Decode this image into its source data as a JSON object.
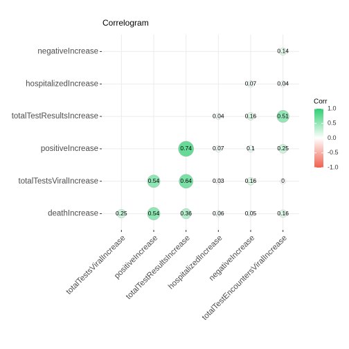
{
  "chart_data": {
    "type": "correlogram",
    "title": "Correlogram",
    "x_categories": [
      "totalTestsViralIncrease",
      "positiveIncrease",
      "totalTestResultsIncrease",
      "hospitalizedIncrease",
      "negativeIncrease",
      "totalTestEncountersViralIncrease"
    ],
    "y_categories": [
      "negativeIncrease",
      "hospitalizedIncrease",
      "totalTestResultsIncrease",
      "positiveIncrease",
      "totalTestsViralIncrease",
      "deathIncrease"
    ],
    "values": [
      [
        null,
        null,
        null,
        null,
        null,
        0.14
      ],
      [
        null,
        null,
        null,
        null,
        0.07,
        0.04
      ],
      [
        null,
        null,
        null,
        0.04,
        0.16,
        0.51
      ],
      [
        null,
        null,
        0.74,
        0.07,
        0.1,
        0.25
      ],
      [
        null,
        0.54,
        0.64,
        0.03,
        0.16,
        0
      ],
      [
        0.25,
        0.54,
        0.36,
        0.06,
        0.05,
        0.16
      ]
    ],
    "legend_title": "Corr",
    "colors": {
      "low": "#f0604d",
      "mid": "#ffffff",
      "high": "#2fce72"
    },
    "clim": [
      -1,
      1
    ],
    "cticks": [
      {
        "value": -1,
        "label": "-1.0"
      },
      {
        "value": -0.5,
        "label": "-0.5"
      },
      {
        "value": 0,
        "label": "0.0"
      },
      {
        "value": 0.5,
        "label": "0.5"
      },
      {
        "value": 1,
        "label": "1.0"
      }
    ],
    "grid": true
  }
}
